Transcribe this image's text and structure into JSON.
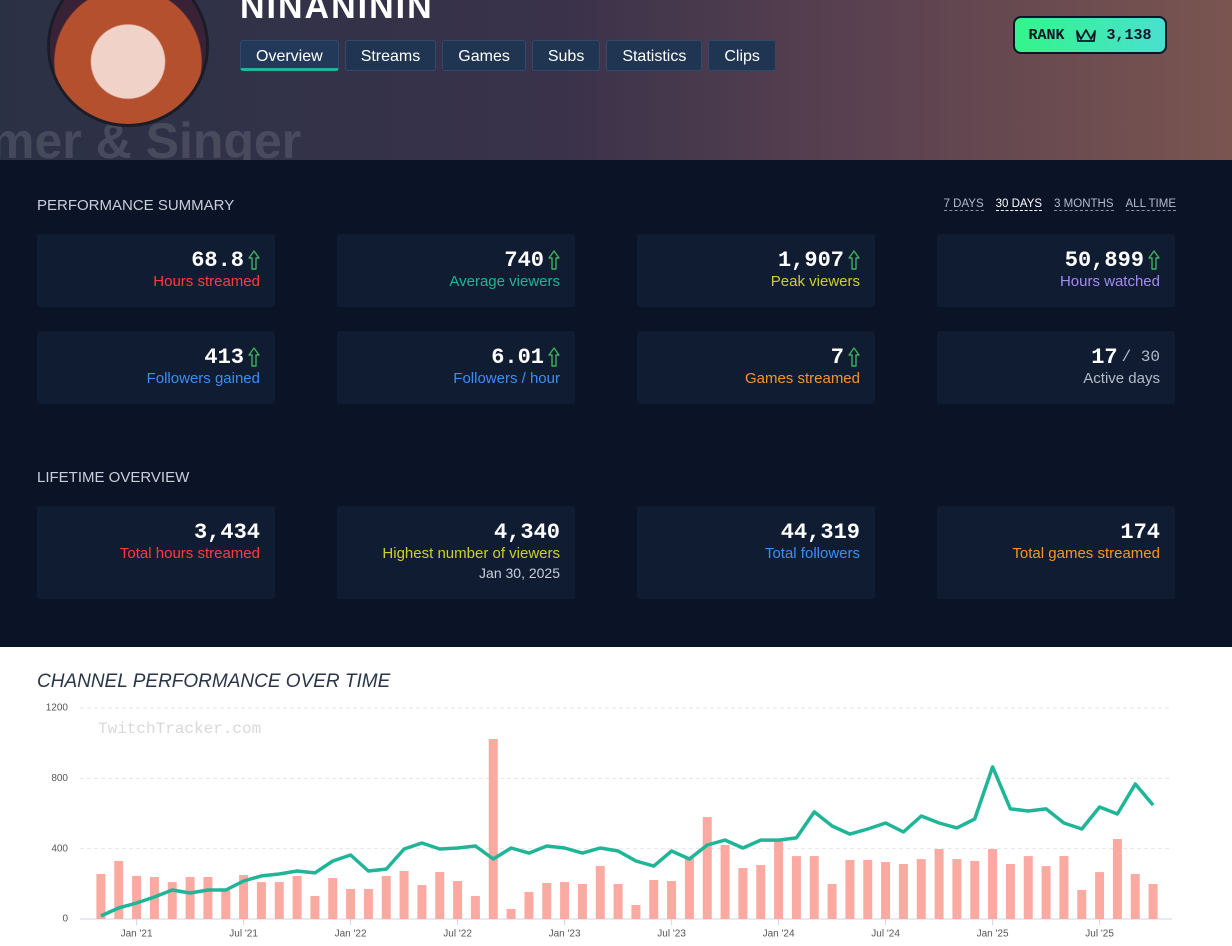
{
  "header": {
    "name": "NINANININ",
    "banner_text": "mer & Singer",
    "tabs": [
      "Overview",
      "Streams",
      "Games",
      "Subs",
      "Statistics",
      "Clips"
    ],
    "active_tab": 0,
    "rank": {
      "label": "RANK",
      "value": "3,138"
    }
  },
  "performance_summary": {
    "title": "PERFORMANCE SUMMARY",
    "periods": [
      "7 DAYS",
      "30 DAYS",
      "3 MONTHS",
      "ALL TIME"
    ],
    "active_period": 1,
    "cards": [
      {
        "value": "68.8",
        "label": "Hours streamed",
        "color": "#ff3b3b",
        "trend": "up"
      },
      {
        "value": "740",
        "label": "Average viewers",
        "color": "#20b597",
        "trend": "up"
      },
      {
        "value": "1,907",
        "label": "Peak viewers",
        "color": "#cfcf2e",
        "trend": "up"
      },
      {
        "value": "50,899",
        "label": "Hours watched",
        "color": "#a58bf0",
        "trend": "up"
      },
      {
        "value": "413",
        "label": "Followers gained",
        "color": "#3d8ef0",
        "trend": "up"
      },
      {
        "value": "6.01",
        "label": "Followers / hour",
        "color": "#3d8ef0",
        "trend": "up"
      },
      {
        "value": "7",
        "label": "Games streamed",
        "color": "#f5962a",
        "trend": "up"
      },
      {
        "value": "17",
        "suffix": "/ 30",
        "label": "Active days",
        "color": "#b3bbc9"
      }
    ]
  },
  "lifetime_overview": {
    "title": "LIFETIME OVERVIEW",
    "cards": [
      {
        "value": "3,434",
        "label": "Total hours streamed",
        "color": "#ff3b3b"
      },
      {
        "value": "4,340",
        "label": "Highest number of viewers",
        "color": "#cfcf2e",
        "date": "Jan 30, 2025"
      },
      {
        "value": "44,319",
        "label": "Total followers",
        "color": "#3d8ef0"
      },
      {
        "value": "174",
        "label": "Total games streamed",
        "color": "#f5962a"
      }
    ]
  },
  "chart_data": {
    "type": "bar",
    "title": "CHANNEL PERFORMANCE OVER TIME",
    "watermark": "TwitchTracker.com",
    "categories": [
      null,
      null,
      "Jan '21",
      null,
      null,
      null,
      null,
      null,
      "Jul '21",
      null,
      null,
      null,
      null,
      null,
      "Jan '22",
      null,
      null,
      null,
      null,
      null,
      "Jul '22",
      null,
      null,
      null,
      null,
      null,
      "Jan '23",
      null,
      null,
      null,
      null,
      null,
      "Jul '23",
      null,
      null,
      null,
      null,
      null,
      "Jan '24",
      null,
      null,
      null,
      null,
      null,
      "Jul '24",
      null,
      null,
      null,
      null,
      null,
      "Jan '25",
      null,
      null,
      null,
      null,
      null,
      "Jul '25",
      null,
      null,
      null
    ],
    "ylim": [
      0,
      1200
    ],
    "yticks": [
      0,
      400,
      800,
      1200
    ],
    "grid": true,
    "series": [
      {
        "type": "bar",
        "color": "#fbaaa2",
        "values": [
          256,
          330,
          245,
          239,
          210,
          239,
          239,
          165,
          250,
          210,
          210,
          245,
          131,
          233,
          171,
          171,
          245,
          273,
          193,
          267,
          216,
          131,
          1024,
          57,
          154,
          205,
          210,
          199,
          301,
          199,
          80,
          222,
          216,
          353,
          580,
          421,
          290,
          307,
          444,
          358,
          358,
          199,
          336,
          336,
          324,
          313,
          341,
          398,
          341,
          330,
          398,
          313,
          358,
          301,
          358,
          165,
          267,
          455,
          256,
          199
        ]
      },
      {
        "type": "line",
        "color": "#20b597",
        "values": [
          17,
          63,
          91,
          125,
          165,
          148,
          165,
          165,
          216,
          245,
          256,
          273,
          262,
          330,
          364,
          273,
          284,
          398,
          432,
          398,
          404,
          415,
          341,
          404,
          375,
          415,
          404,
          375,
          404,
          387,
          330,
          301,
          387,
          341,
          421,
          449,
          404,
          449,
          449,
          461,
          609,
          529,
          483,
          512,
          546,
          495,
          586,
          546,
          518,
          569,
          865,
          626,
          614,
          626,
          546,
          512,
          637,
          597,
          768,
          648
        ]
      }
    ]
  }
}
